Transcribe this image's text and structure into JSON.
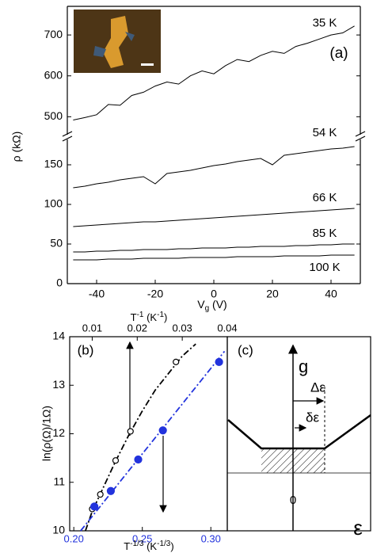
{
  "chart_data": [
    {
      "type": "line",
      "panel_label": "(a)",
      "x_label": [
        "V",
        "g",
        " (V)"
      ],
      "y_label": "ρ (kΩ)",
      "xlim": [
        -50,
        50
      ],
      "xticks": [
        -40,
        -20,
        0,
        20,
        40
      ],
      "segments": [
        {
          "ylim": [
            460,
            770
          ],
          "yticks": [
            500,
            600,
            700
          ]
        },
        {
          "ylim": [
            0,
            180
          ],
          "yticks": [
            0,
            50,
            100,
            150
          ]
        }
      ],
      "x": [
        -48,
        -44,
        -40,
        -36,
        -32,
        -28,
        -24,
        -20,
        -16,
        -12,
        -8,
        -4,
        0,
        4,
        8,
        12,
        16,
        20,
        24,
        28,
        32,
        36,
        40,
        44,
        48
      ],
      "series": [
        {
          "name": "35 K",
          "color": "#000000",
          "segment": 0,
          "values": [
            492,
            498,
            505,
            530,
            528,
            552,
            560,
            575,
            585,
            580,
            600,
            612,
            605,
            625,
            640,
            635,
            650,
            660,
            655,
            672,
            680,
            690,
            700,
            705,
            722
          ]
        },
        {
          "name": "54 K",
          "color": "#000000",
          "segment": 1,
          "values": [
            121,
            123,
            126,
            128,
            131,
            133,
            135,
            126,
            139,
            141,
            143,
            146,
            149,
            151,
            154,
            156,
            158,
            150,
            162,
            164,
            166,
            168,
            170,
            171,
            173
          ]
        },
        {
          "name": "66 K",
          "color": "#000000",
          "segment": 1,
          "values": [
            72,
            73,
            74,
            75,
            76,
            77,
            78,
            78,
            79,
            80,
            81,
            82,
            83,
            84,
            85,
            86,
            87,
            88,
            89,
            90,
            91,
            92,
            93,
            94,
            95
          ]
        },
        {
          "name": "85 K",
          "color": "#000000",
          "segment": 1,
          "values": [
            40,
            40,
            41,
            41,
            42,
            42,
            43,
            43,
            43,
            44,
            44,
            45,
            45,
            45,
            46,
            46,
            47,
            47,
            47,
            48,
            48,
            49,
            49,
            50,
            50
          ]
        },
        {
          "name": "100 K",
          "color": "#000000",
          "segment": 1,
          "values": [
            30,
            30,
            30,
            31,
            31,
            31,
            32,
            32,
            32,
            32,
            33,
            33,
            33,
            33,
            34,
            34,
            34,
            34,
            35,
            35,
            35,
            35,
            36,
            36,
            36
          ]
        }
      ]
    },
    {
      "type": "scatter",
      "panel_label": "(b)",
      "x_label": [
        "T",
        "-1/3",
        " (K",
        "-1/3",
        ")"
      ],
      "x2_label": [
        "T",
        "-1",
        " (K",
        "-1",
        ")"
      ],
      "y_label": "ln(ρ(Ω)/1Ω)",
      "xlim": [
        0.197,
        0.312
      ],
      "xticks": [
        {
          "value": 0.2,
          "label": "0.20"
        },
        0.25,
        {
          "value": 0.3,
          "label": "0.30"
        }
      ],
      "xtick_color": "#2233dd",
      "x2lim": [
        0.005,
        0.04
      ],
      "x2ticks": [
        0.01,
        0.02,
        0.03,
        0.04
      ],
      "ylim": [
        10,
        14
      ],
      "yticks": [
        10,
        11,
        12,
        13,
        14
      ],
      "series": [
        {
          "color": "#000000",
          "marker": "open",
          "axis": "x2",
          "x": [
            0.01,
            0.0118,
            0.0152,
            0.0185,
            0.0286
          ],
          "values": [
            10.45,
            10.75,
            11.45,
            12.05,
            13.48
          ]
        },
        {
          "color": "#2233dd",
          "marker": "filled",
          "axis": "x",
          "x": [
            0.215,
            0.227,
            0.247,
            0.265,
            0.306
          ],
          "values": [
            10.5,
            10.82,
            11.47,
            12.07,
            13.48
          ]
        }
      ],
      "fits": [
        {
          "color": "#000000",
          "axis": "x2",
          "x": [
            0.0085,
            0.01,
            0.012,
            0.015,
            0.018,
            0.021,
            0.024,
            0.027,
            0.03,
            0.033
          ],
          "values": [
            10.0,
            10.4,
            10.8,
            11.4,
            11.95,
            12.45,
            12.9,
            13.25,
            13.6,
            13.85
          ]
        },
        {
          "color": "#2233dd",
          "axis": "x",
          "x": [
            0.205,
            0.31
          ],
          "values": [
            10.0,
            13.7
          ]
        }
      ]
    }
  ],
  "schematic": {
    "panel_label": "(c)",
    "y_label": "g",
    "x_label": "ε",
    "origin_label": "0",
    "wide_label": "Δε",
    "narrow_label": "δε"
  }
}
